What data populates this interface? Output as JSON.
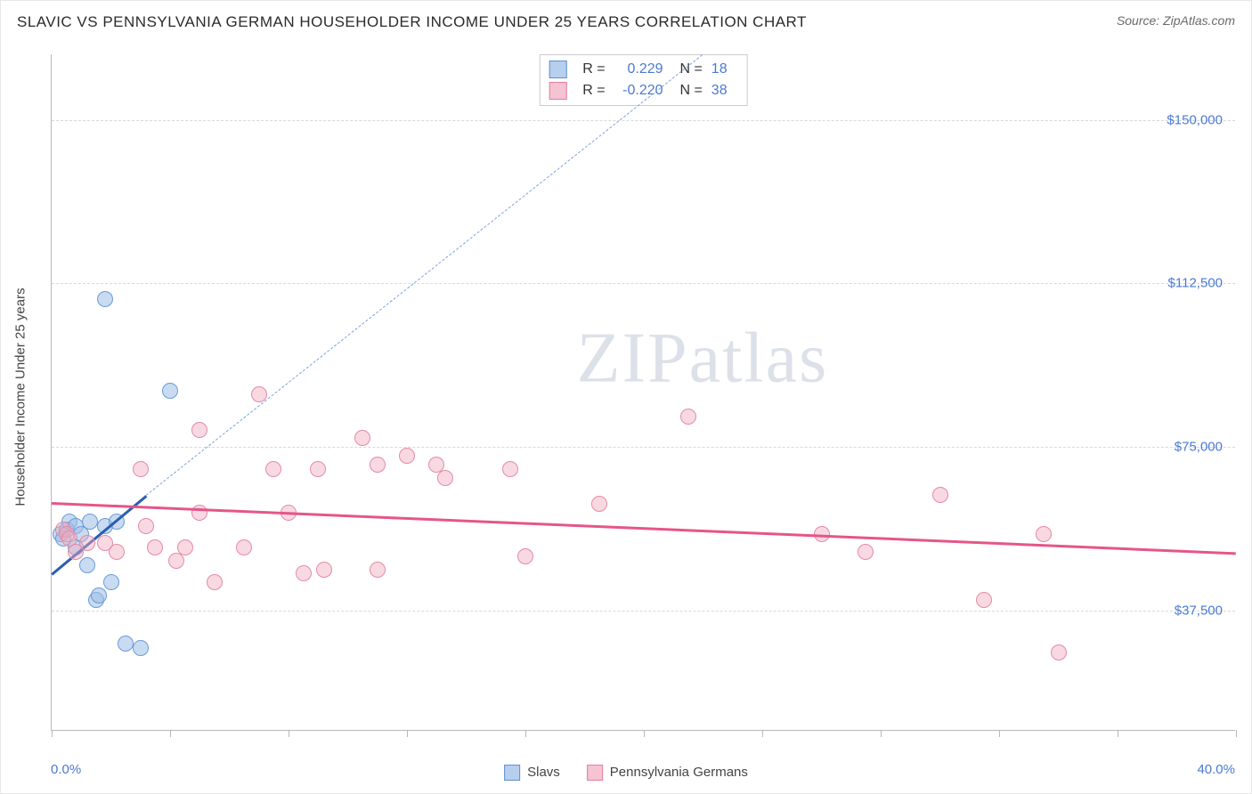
{
  "title": "SLAVIC VS PENNSYLVANIA GERMAN HOUSEHOLDER INCOME UNDER 25 YEARS CORRELATION CHART",
  "source": "Source: ZipAtlas.com",
  "watermark": "ZIPatlas",
  "ylabel": "Householder Income Under 25 years",
  "chart": {
    "type": "scatter",
    "xlim": [
      0,
      40
    ],
    "ylim": [
      10000,
      165000
    ],
    "background_color": "#ffffff",
    "grid_color": "#d8d8d8",
    "axis_color": "#b8b8b8",
    "tick_label_color": "#4a79d4",
    "tick_fontsize": 15,
    "axis_fontsize": 15,
    "yticks": [
      {
        "v": 37500,
        "label": "$37,500"
      },
      {
        "v": 75000,
        "label": "$75,000"
      },
      {
        "v": 112500,
        "label": "$112,500"
      },
      {
        "v": 150000,
        "label": "$150,000"
      }
    ],
    "xtick_positions": [
      0,
      4,
      8,
      12,
      16,
      20,
      24,
      28,
      32,
      36,
      40
    ],
    "x_start_label": "0.0%",
    "x_end_label": "40.0%",
    "marker_radius": 9,
    "marker_border_width": 1,
    "series": [
      {
        "name": "Slavs",
        "color_fill": "rgba(156,190,230,0.55)",
        "color_border": "#6a9bd8",
        "swatch_fill": "#b7cfef",
        "swatch_border": "#5e8fd0",
        "r": "0.229",
        "n": "18",
        "trend": {
          "x1": 0,
          "y1": 46000,
          "x2": 3.2,
          "y2": 64000,
          "color": "#2a5fb0",
          "width": 2.5,
          "style": "solid"
        },
        "trend_extrapolate": {
          "x1": 3.2,
          "y1": 64000,
          "x2": 22,
          "y2": 165000,
          "color": "#7da3dd",
          "style": "dashed"
        },
        "points": [
          {
            "x": 0.3,
            "y": 55000
          },
          {
            "x": 0.4,
            "y": 54000
          },
          {
            "x": 0.5,
            "y": 56000
          },
          {
            "x": 0.6,
            "y": 58000
          },
          {
            "x": 0.8,
            "y": 52000
          },
          {
            "x": 0.8,
            "y": 57000
          },
          {
            "x": 1.0,
            "y": 55000
          },
          {
            "x": 1.2,
            "y": 48000
          },
          {
            "x": 1.3,
            "y": 58000
          },
          {
            "x": 1.5,
            "y": 40000
          },
          {
            "x": 1.6,
            "y": 41000
          },
          {
            "x": 1.8,
            "y": 57000
          },
          {
            "x": 2.0,
            "y": 44000
          },
          {
            "x": 2.2,
            "y": 58000
          },
          {
            "x": 2.5,
            "y": 30000
          },
          {
            "x": 1.8,
            "y": 109000
          },
          {
            "x": 3.0,
            "y": 29000
          },
          {
            "x": 4.0,
            "y": 88000
          }
        ]
      },
      {
        "name": "Pennsylvania Germans",
        "color_fill": "rgba(240,170,190,0.45)",
        "color_border": "#e38aa8",
        "swatch_fill": "#f5c3d2",
        "swatch_border": "#e17ea0",
        "r": "-0.220",
        "n": "38",
        "trend": {
          "x1": 0,
          "y1": 62500,
          "x2": 40,
          "y2": 51000,
          "color": "#e6558a",
          "width": 2.5,
          "style": "solid"
        },
        "points": [
          {
            "x": 0.4,
            "y": 56000
          },
          {
            "x": 0.5,
            "y": 55000
          },
          {
            "x": 0.6,
            "y": 54000
          },
          {
            "x": 0.8,
            "y": 51000
          },
          {
            "x": 1.2,
            "y": 53000
          },
          {
            "x": 1.8,
            "y": 53000
          },
          {
            "x": 2.2,
            "y": 51000
          },
          {
            "x": 3.0,
            "y": 70000
          },
          {
            "x": 3.2,
            "y": 57000
          },
          {
            "x": 3.5,
            "y": 52000
          },
          {
            "x": 4.2,
            "y": 49000
          },
          {
            "x": 4.5,
            "y": 52000
          },
          {
            "x": 5.0,
            "y": 79000
          },
          {
            "x": 5.0,
            "y": 60000
          },
          {
            "x": 5.5,
            "y": 44000
          },
          {
            "x": 6.5,
            "y": 52000
          },
          {
            "x": 7.0,
            "y": 87000
          },
          {
            "x": 7.5,
            "y": 70000
          },
          {
            "x": 8.0,
            "y": 60000
          },
          {
            "x": 8.5,
            "y": 46000
          },
          {
            "x": 9.0,
            "y": 70000
          },
          {
            "x": 9.2,
            "y": 47000
          },
          {
            "x": 10.5,
            "y": 77000
          },
          {
            "x": 11.0,
            "y": 71000
          },
          {
            "x": 11.0,
            "y": 47000
          },
          {
            "x": 12.0,
            "y": 73000
          },
          {
            "x": 13.0,
            "y": 71000
          },
          {
            "x": 13.3,
            "y": 68000
          },
          {
            "x": 15.5,
            "y": 70000
          },
          {
            "x": 16.0,
            "y": 50000
          },
          {
            "x": 18.5,
            "y": 62000
          },
          {
            "x": 21.5,
            "y": 82000
          },
          {
            "x": 26.0,
            "y": 55000
          },
          {
            "x": 27.5,
            "y": 51000
          },
          {
            "x": 30.0,
            "y": 64000
          },
          {
            "x": 31.5,
            "y": 40000
          },
          {
            "x": 33.5,
            "y": 55000
          },
          {
            "x": 34.0,
            "y": 28000
          }
        ]
      }
    ]
  },
  "legend_bottom": [
    {
      "label": "Slavs",
      "swatch": 0
    },
    {
      "label": "Pennsylvania Germans",
      "swatch": 1
    }
  ]
}
